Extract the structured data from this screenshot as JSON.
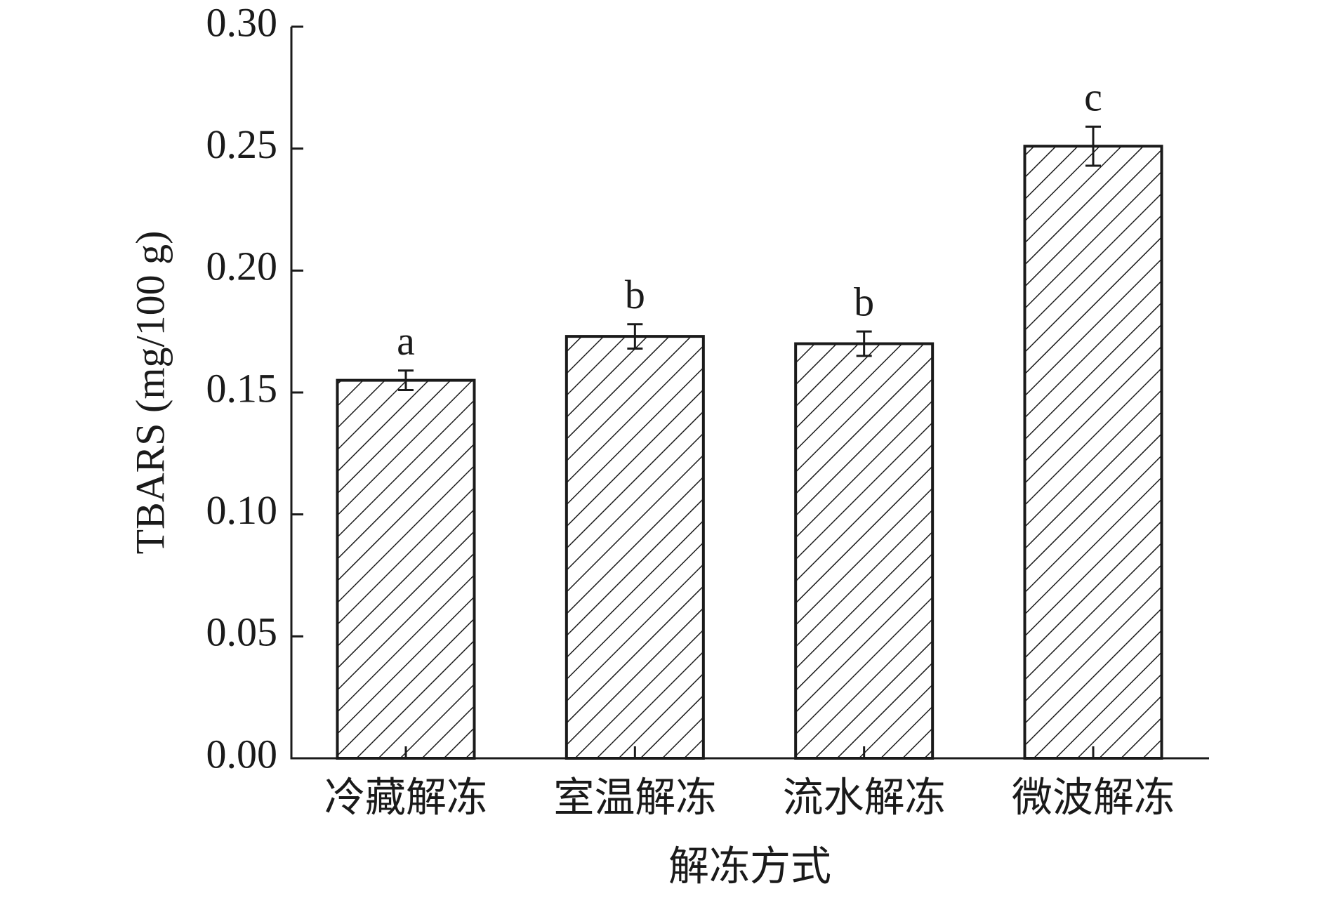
{
  "chart_data": {
    "type": "bar",
    "categories": [
      "冷藏解冻",
      "室温解冻",
      "流水解冻",
      "微波解冻"
    ],
    "values": [
      0.155,
      0.173,
      0.17,
      0.251
    ],
    "errors": [
      0.004,
      0.005,
      0.005,
      0.008
    ],
    "significance_labels": [
      "a",
      "b",
      "b",
      "c"
    ],
    "color": "#ffffff",
    "hatch": "diagonal",
    "xlabel": "解冻方式",
    "ylabel": "TBARS (mg/100 g)",
    "ylim": [
      0,
      0.3
    ],
    "yticks": [
      {
        "value": 0,
        "label": "0.00"
      },
      {
        "value": 0.05,
        "label": "0.05"
      },
      {
        "value": 0.1,
        "label": "0.10"
      },
      {
        "value": 0.15,
        "label": "0.15"
      },
      {
        "value": 0.2,
        "label": "0.20"
      },
      {
        "value": 0.25,
        "label": "0.25"
      },
      {
        "value": 0.3,
        "label": "0.30"
      }
    ],
    "grid": false
  }
}
